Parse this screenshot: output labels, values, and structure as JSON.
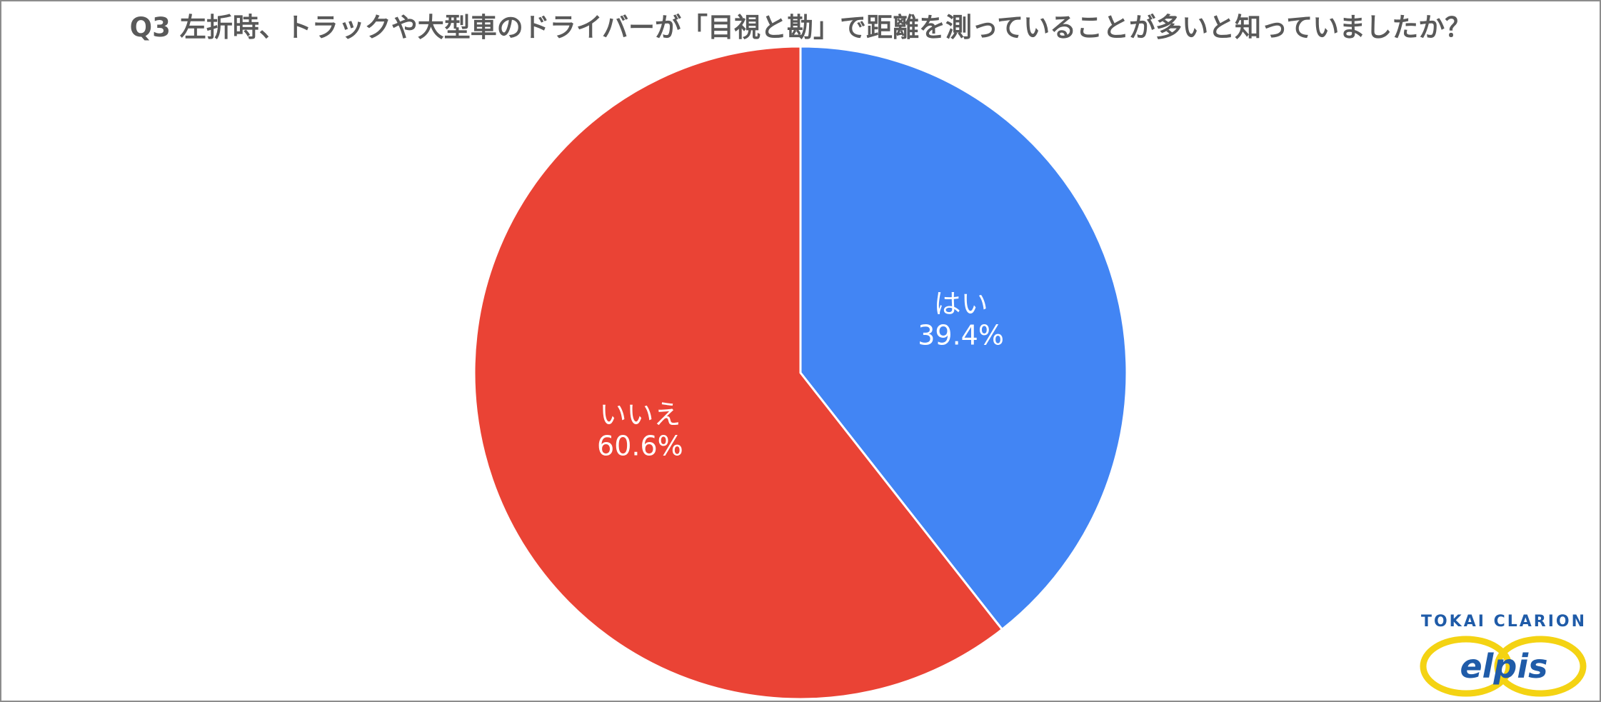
{
  "chart_data": {
    "type": "pie",
    "title": "Q3 左折時、トラックや大型車のドライバーが「目視と勘」で距離を測っていることが多いと知っていましたか？",
    "start_angle_deg": 0,
    "direction": "clockwise",
    "slices": [
      {
        "label": "はい",
        "value": 39.4,
        "value_label": "39.4%",
        "color": "#4285f4"
      },
      {
        "label": "いいえ",
        "value": 60.6,
        "value_label": "60.6%",
        "color": "#ea4335"
      }
    ],
    "legend": "none"
  },
  "logo": {
    "brand": "TOKAI CLARION",
    "product": "elpis",
    "ring_color": "#f4d313",
    "text_color": "#1f5ba8"
  }
}
